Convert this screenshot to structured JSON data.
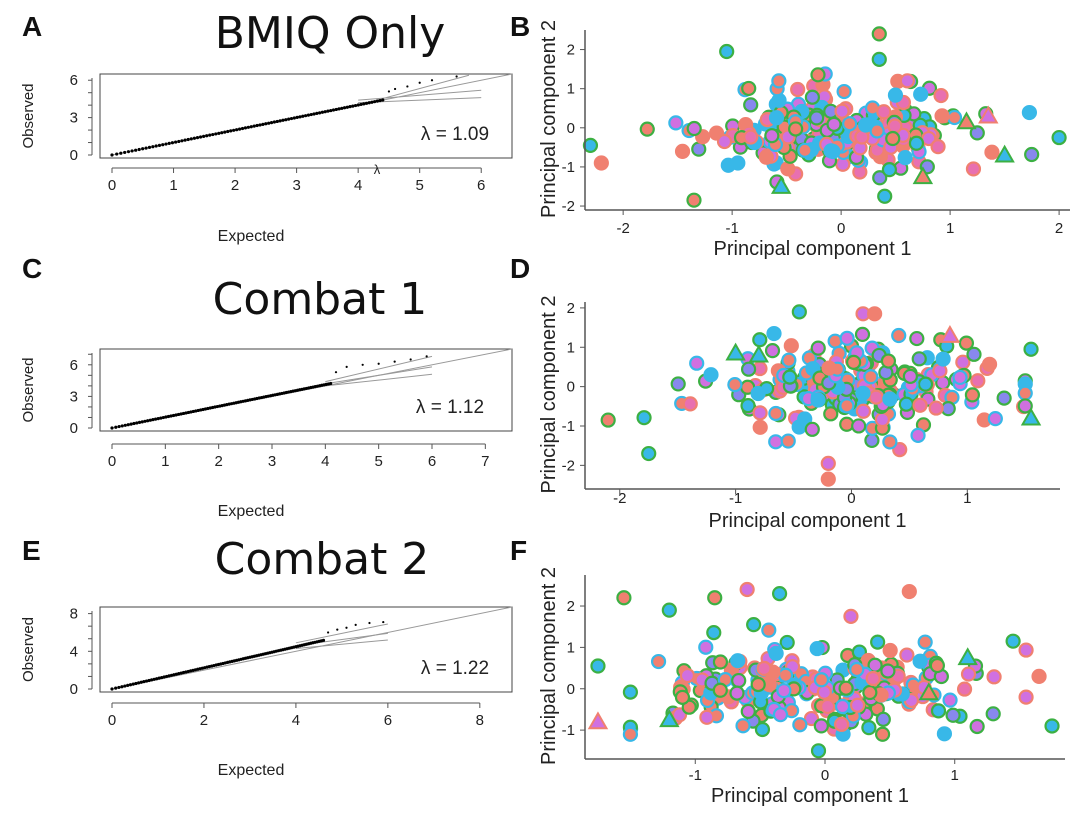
{
  "panels": [
    {
      "letter": "A"
    },
    {
      "letter": "B"
    },
    {
      "letter": "C"
    },
    {
      "letter": "D"
    },
    {
      "letter": "E"
    },
    {
      "letter": "F"
    }
  ],
  "chart_data": [
    {
      "id": "A",
      "type": "scatter",
      "subtype": "qq-plot",
      "title": "BMIQ Only",
      "xlabel": "Expected",
      "ylabel": "Observed",
      "xlim": [
        0,
        6.5
      ],
      "ylim": [
        0,
        6.5
      ],
      "xticks": [
        "0",
        "1",
        "2",
        "3",
        "4",
        "5",
        "6"
      ],
      "yticks": [
        "0",
        "3",
        "6"
      ],
      "annotation": "λ = 1.09",
      "stray_label": "λ",
      "qq_points": {
        "x_start": 0,
        "x_end": 4.4,
        "slope": 1.09,
        "tail": [
          [
            4.5,
            5.1
          ],
          [
            4.6,
            5.3
          ],
          [
            4.8,
            5.5
          ],
          [
            5.0,
            5.8
          ],
          [
            5.2,
            6.0
          ],
          [
            5.6,
            6.3
          ]
        ]
      },
      "ref_lines": [
        {
          "x": [
            0,
            6.5
          ],
          "y": [
            0,
            6.5
          ]
        },
        {
          "x": [
            4.0,
            6.0
          ],
          "y": [
            4.4,
            5.2
          ]
        },
        {
          "x": [
            4.0,
            6.0
          ],
          "y": [
            4.2,
            4.6
          ]
        },
        {
          "x": [
            4.0,
            5.8
          ],
          "y": [
            4.0,
            6.4
          ]
        }
      ]
    },
    {
      "id": "B",
      "type": "scatter",
      "subtype": "pca",
      "xlabel": "Principal component 1",
      "ylabel": "Principal component 2",
      "xlim": [
        -2.35,
        2.1
      ],
      "ylim": [
        -2.05,
        2.5
      ],
      "xticks": [
        "-2",
        "-1",
        "0",
        "1",
        "2"
      ],
      "yticks": [
        "-2",
        "-1",
        "0",
        "1",
        "2"
      ],
      "xtick_values": [
        -2,
        -1,
        0,
        1,
        2
      ],
      "ytick_values": [
        -2,
        -1,
        0,
        1,
        2
      ],
      "seed": 11,
      "n_points": 230,
      "extra_points": [
        [
          0.35,
          2.4,
          "c0"
        ],
        [
          0.35,
          1.75,
          "c2"
        ],
        [
          -1.35,
          -1.85,
          "c0"
        ],
        [
          -1.05,
          1.95,
          "c2"
        ],
        [
          2.0,
          -0.25,
          "c2"
        ],
        [
          -2.2,
          -0.9,
          "c1"
        ],
        [
          -2.3,
          -0.45,
          "c2"
        ],
        [
          0.4,
          -1.75,
          "c2"
        ]
      ],
      "triangles": [
        [
          -0.55,
          -1.5,
          "c2"
        ],
        [
          0.75,
          -1.25,
          "c0"
        ],
        [
          1.15,
          0.15,
          "c0"
        ],
        [
          1.35,
          0.3,
          "c3"
        ],
        [
          1.5,
          -0.7,
          "c2"
        ]
      ]
    },
    {
      "id": "C",
      "type": "scatter",
      "subtype": "qq-plot",
      "title": "Combat 1",
      "xlabel": "Expected",
      "ylabel": "Observed",
      "xlim": [
        0,
        7.5
      ],
      "ylim": [
        0,
        7.5
      ],
      "xticks": [
        "0",
        "1",
        "2",
        "3",
        "4",
        "5",
        "6",
        "7"
      ],
      "yticks": [
        "0",
        "3",
        "6"
      ],
      "annotation": "λ = 1.12",
      "qq_points": {
        "x_start": 0,
        "x_end": 4.1,
        "slope": 1.12,
        "tail": [
          [
            4.2,
            5.3
          ],
          [
            4.4,
            5.8
          ],
          [
            4.7,
            6.0
          ],
          [
            5.0,
            6.1
          ],
          [
            5.3,
            6.3
          ],
          [
            5.6,
            6.5
          ],
          [
            5.9,
            6.8
          ]
        ]
      },
      "ref_lines": [
        {
          "x": [
            0,
            7.5
          ],
          "y": [
            0,
            7.5
          ]
        },
        {
          "x": [
            4.0,
            6.0
          ],
          "y": [
            4.4,
            6.8
          ]
        },
        {
          "x": [
            4.0,
            6.0
          ],
          "y": [
            4.2,
            5.8
          ]
        },
        {
          "x": [
            4.0,
            6.0
          ],
          "y": [
            4.0,
            5.1
          ]
        }
      ]
    },
    {
      "id": "D",
      "type": "scatter",
      "subtype": "pca",
      "xlabel": "Principal component 1",
      "ylabel": "Principal component 2",
      "xlim": [
        -2.3,
        1.8
      ],
      "ylim": [
        -2.55,
        2.15
      ],
      "xticks": [
        "-2",
        "-1",
        "0",
        "1"
      ],
      "yticks": [
        "-2",
        "-1",
        "0",
        "1",
        "2"
      ],
      "xtick_values": [
        -2,
        -1,
        0,
        1
      ],
      "ytick_values": [
        -2,
        -1,
        0,
        1,
        2
      ],
      "seed": 23,
      "n_points": 230,
      "extra_points": [
        [
          -0.45,
          1.9,
          "c2"
        ],
        [
          0.1,
          1.85,
          "c3"
        ],
        [
          0.2,
          1.85,
          "c1"
        ],
        [
          -2.1,
          -0.85,
          "c0"
        ],
        [
          -1.75,
          -1.7,
          "c2"
        ],
        [
          -0.2,
          -2.35,
          "c1"
        ],
        [
          -0.2,
          -1.95,
          "c3"
        ],
        [
          1.55,
          0.95,
          "c2"
        ]
      ],
      "triangles": [
        [
          -1.0,
          0.85,
          "c2"
        ],
        [
          -0.8,
          0.8,
          "c2"
        ],
        [
          0.85,
          1.3,
          "c3"
        ],
        [
          1.55,
          -0.8,
          "c2"
        ]
      ]
    },
    {
      "id": "E",
      "type": "scatter",
      "subtype": "qq-plot",
      "title": "Combat 2",
      "xlabel": "Expected",
      "ylabel": "Observed",
      "xlim": [
        0,
        8.7
      ],
      "ylim": [
        0,
        8.7
      ],
      "xticks": [
        "0",
        "2",
        "4",
        "6",
        "8"
      ],
      "yticks": [
        "0",
        "4",
        "8"
      ],
      "annotation": "λ = 1.22",
      "qq_points": {
        "x_start": 0,
        "x_end": 4.6,
        "slope": 1.22,
        "tail": [
          [
            4.7,
            6.0
          ],
          [
            4.9,
            6.3
          ],
          [
            5.1,
            6.5
          ],
          [
            5.3,
            6.8
          ],
          [
            5.6,
            7.0
          ],
          [
            5.9,
            7.1
          ]
        ]
      },
      "ref_lines": [
        {
          "x": [
            0,
            8.7
          ],
          "y": [
            0,
            8.7
          ]
        },
        {
          "x": [
            4.0,
            6.0
          ],
          "y": [
            4.9,
            6.9
          ]
        },
        {
          "x": [
            4.0,
            6.0
          ],
          "y": [
            4.6,
            5.9
          ]
        },
        {
          "x": [
            4.0,
            6.0
          ],
          "y": [
            4.3,
            5.2
          ]
        }
      ]
    },
    {
      "id": "F",
      "type": "scatter",
      "subtype": "pca",
      "xlabel": "Principal component 1",
      "ylabel": "Principal component 2",
      "xlim": [
        -1.85,
        1.85
      ],
      "ylim": [
        -1.65,
        2.75
      ],
      "xticks": [
        "-1",
        "0",
        "1"
      ],
      "yticks": [
        "-1",
        "0",
        "1",
        "2"
      ],
      "xtick_values": [
        -1,
        0,
        1
      ],
      "ytick_values": [
        -1,
        0,
        1,
        2
      ],
      "seed": 37,
      "n_points": 230,
      "extra_points": [
        [
          -1.55,
          2.2,
          "c0"
        ],
        [
          -1.2,
          1.9,
          "c2"
        ],
        [
          -0.6,
          2.4,
          "c3"
        ],
        [
          -0.35,
          2.3,
          "c2"
        ],
        [
          0.65,
          2.35,
          "c1"
        ],
        [
          -0.85,
          2.2,
          "c0"
        ],
        [
          -0.55,
          1.55,
          "c2"
        ],
        [
          0.2,
          1.75,
          "c3"
        ],
        [
          -1.75,
          0.55,
          "c2"
        ],
        [
          1.75,
          -0.9,
          "c2"
        ],
        [
          -0.05,
          -1.5,
          "c2"
        ],
        [
          1.45,
          1.15,
          "c2"
        ],
        [
          1.65,
          0.3,
          "c1"
        ]
      ],
      "triangles": [
        [
          -1.75,
          -0.8,
          "c3"
        ],
        [
          -1.2,
          -0.75,
          "c2"
        ],
        [
          0.8,
          -0.1,
          "c0"
        ],
        [
          1.1,
          0.75,
          "c2"
        ]
      ]
    }
  ],
  "colors": {
    "c0": {
      "fill": "#f08070",
      "stroke": "#3cb043"
    },
    "c1": {
      "fill": "#f08070",
      "stroke": "#f08070"
    },
    "c2": {
      "fill": "#38b8e8",
      "stroke": "#3cb043"
    },
    "c3": {
      "fill": "#d070e0",
      "stroke": "#f08070"
    },
    "c4": {
      "fill": "#38b8e8",
      "stroke": "#38b8e8"
    },
    "c5": {
      "fill": "#d070e0",
      "stroke": "#3cb043"
    },
    "c6": {
      "fill": "#f08070",
      "stroke": "#38b8e8"
    },
    "c7": {
      "fill": "#d070e0",
      "stroke": "#38b8e8"
    },
    "c8": {
      "fill": "#8888ee",
      "stroke": "#3cb043"
    },
    "c9": {
      "fill": "#e870b0",
      "stroke": "#f08070"
    }
  },
  "axis_color": "#555555",
  "qq_point_color": "#000000",
  "ref_line_color": "#999999"
}
